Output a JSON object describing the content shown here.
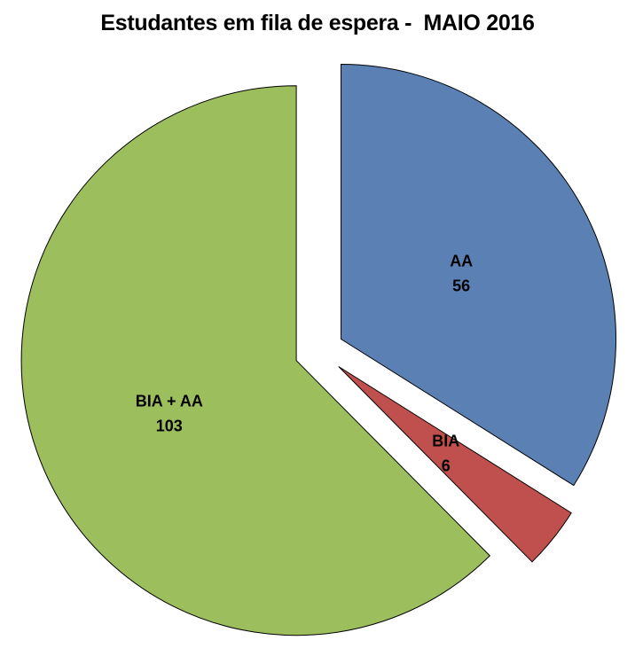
{
  "chart_data": {
    "type": "pie",
    "title": "Estudantes em fila de espera -  MAIO 2016",
    "title_color": "#000000",
    "background": "#FFFFFF",
    "legend": "none",
    "exploded": true,
    "direction": "clockwise",
    "start_angle_deg": 0,
    "slice_border_color": "#000000",
    "label_text_color": "#000000",
    "total": 165,
    "slices": [
      {
        "label": "AA",
        "value": 56,
        "color": "#5B81B4"
      },
      {
        "label": "BIA",
        "value": 6,
        "color": "#C0504D"
      },
      {
        "label": "BIA + AA",
        "value": 103,
        "color": "#9CBE5D"
      }
    ]
  }
}
